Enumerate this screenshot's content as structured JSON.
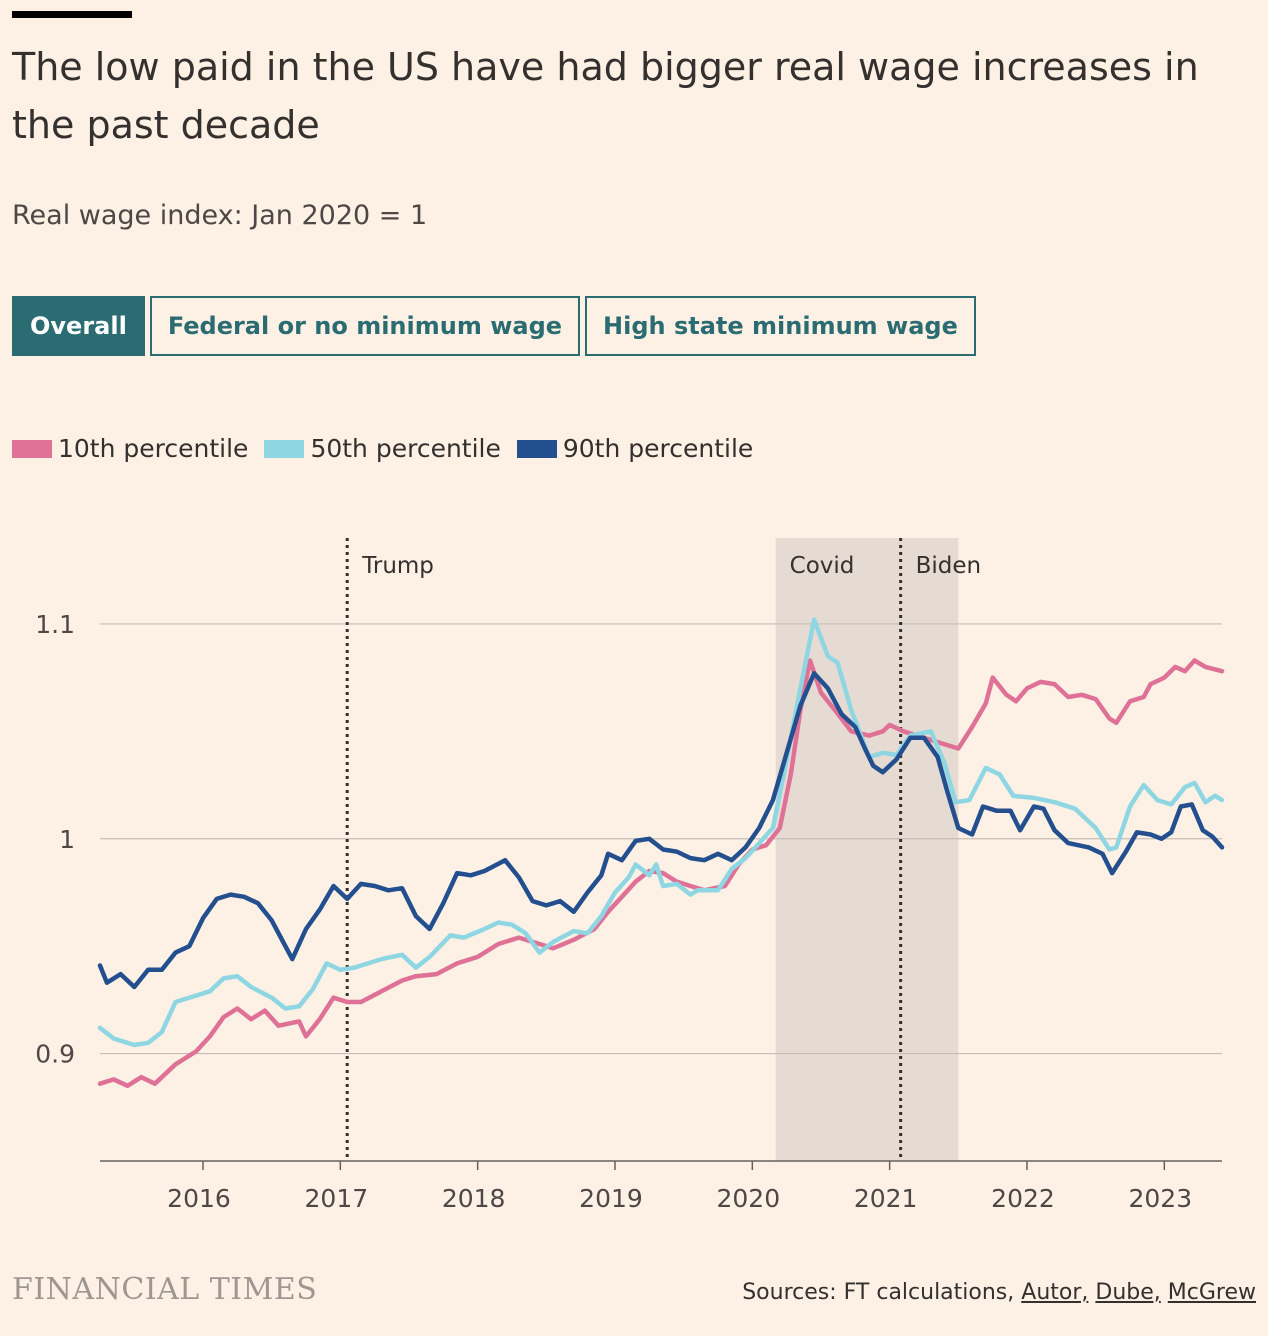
{
  "header": {
    "title": "The low paid in the US have had bigger real wage increases in the past decade",
    "subtitle": "Real wage index: Jan 2020 = 1"
  },
  "tabs": [
    {
      "label": "Overall",
      "active": true
    },
    {
      "label": "Federal or no minimum wage",
      "active": false
    },
    {
      "label": "High state minimum wage",
      "active": false
    }
  ],
  "legend": [
    {
      "label": "10th percentile",
      "color": "#e07196"
    },
    {
      "label": "50th percentile",
      "color": "#8fd6e3"
    },
    {
      "label": "90th percentile",
      "color": "#244f8f"
    }
  ],
  "footer": {
    "logo": "FINANCIAL TIMES",
    "sources_prefix": "Sources: FT calculations, ",
    "source_links": [
      "Autor,",
      "Dube,",
      "McGrew"
    ]
  },
  "chart_data": {
    "type": "line",
    "x_unit": "year",
    "xlim": [
      2015.25,
      2023.42
    ],
    "ylim": [
      0.85,
      1.14
    ],
    "y_ticks": [
      0.9,
      1.0,
      1.1
    ],
    "y_tick_labels": [
      "0.9",
      "1",
      "1.1"
    ],
    "x_ticks": [
      2016,
      2017,
      2018,
      2019,
      2020,
      2021,
      2022,
      2023
    ],
    "x_tick_labels": [
      "2016",
      "2017",
      "2018",
      "2019",
      "2020",
      "2021",
      "2022",
      "2023"
    ],
    "grid": true,
    "shaded_regions": [
      {
        "label": "Covid",
        "x0": 2020.17,
        "x1": 2021.5,
        "color": "#e6dbd2"
      }
    ],
    "vlines": [
      {
        "label": "Trump",
        "x": 2017.05
      },
      {
        "label": "Biden",
        "x": 2021.08
      }
    ],
    "series": [
      {
        "name": "10th percentile",
        "color": "#e07196",
        "points": [
          [
            2015.25,
            0.886
          ],
          [
            2015.35,
            0.888
          ],
          [
            2015.45,
            0.885
          ],
          [
            2015.55,
            0.889
          ],
          [
            2015.65,
            0.886
          ],
          [
            2015.8,
            0.895
          ],
          [
            2015.95,
            0.901
          ],
          [
            2016.05,
            0.908
          ],
          [
            2016.15,
            0.917
          ],
          [
            2016.25,
            0.921
          ],
          [
            2016.35,
            0.916
          ],
          [
            2016.45,
            0.92
          ],
          [
            2016.55,
            0.913
          ],
          [
            2016.7,
            0.915
          ],
          [
            2016.75,
            0.908
          ],
          [
            2016.85,
            0.916
          ],
          [
            2016.95,
            0.926
          ],
          [
            2017.05,
            0.924
          ],
          [
            2017.15,
            0.924
          ],
          [
            2017.3,
            0.929
          ],
          [
            2017.45,
            0.934
          ],
          [
            2017.55,
            0.936
          ],
          [
            2017.7,
            0.937
          ],
          [
            2017.85,
            0.942
          ],
          [
            2018.0,
            0.945
          ],
          [
            2018.15,
            0.951
          ],
          [
            2018.3,
            0.954
          ],
          [
            2018.45,
            0.951
          ],
          [
            2018.55,
            0.949
          ],
          [
            2018.7,
            0.953
          ],
          [
            2018.85,
            0.958
          ],
          [
            2018.95,
            0.966
          ],
          [
            2019.05,
            0.973
          ],
          [
            2019.15,
            0.98
          ],
          [
            2019.25,
            0.985
          ],
          [
            2019.35,
            0.984
          ],
          [
            2019.45,
            0.98
          ],
          [
            2019.55,
            0.978
          ],
          [
            2019.65,
            0.976
          ],
          [
            2019.8,
            0.978
          ],
          [
            2019.9,
            0.988
          ],
          [
            2020.0,
            0.995
          ],
          [
            2020.1,
            0.997
          ],
          [
            2020.2,
            1.005
          ],
          [
            2020.28,
            1.03
          ],
          [
            2020.35,
            1.06
          ],
          [
            2020.42,
            1.083
          ],
          [
            2020.5,
            1.068
          ],
          [
            2020.6,
            1.06
          ],
          [
            2020.72,
            1.05
          ],
          [
            2020.85,
            1.048
          ],
          [
            2020.95,
            1.05
          ],
          [
            2021.0,
            1.053
          ],
          [
            2021.1,
            1.05
          ],
          [
            2021.2,
            1.048
          ],
          [
            2021.35,
            1.045
          ],
          [
            2021.5,
            1.042
          ],
          [
            2021.6,
            1.052
          ],
          [
            2021.7,
            1.063
          ],
          [
            2021.75,
            1.075
          ],
          [
            2021.85,
            1.067
          ],
          [
            2021.92,
            1.064
          ],
          [
            2022.0,
            1.07
          ],
          [
            2022.1,
            1.073
          ],
          [
            2022.2,
            1.072
          ],
          [
            2022.3,
            1.066
          ],
          [
            2022.4,
            1.067
          ],
          [
            2022.5,
            1.065
          ],
          [
            2022.6,
            1.056
          ],
          [
            2022.65,
            1.054
          ],
          [
            2022.75,
            1.064
          ],
          [
            2022.85,
            1.066
          ],
          [
            2022.9,
            1.072
          ],
          [
            2023.0,
            1.075
          ],
          [
            2023.08,
            1.08
          ],
          [
            2023.15,
            1.078
          ],
          [
            2023.22,
            1.083
          ],
          [
            2023.3,
            1.08
          ],
          [
            2023.42,
            1.078
          ]
        ]
      },
      {
        "name": "50th percentile",
        "color": "#8fd6e3",
        "points": [
          [
            2015.25,
            0.912
          ],
          [
            2015.35,
            0.907
          ],
          [
            2015.5,
            0.904
          ],
          [
            2015.6,
            0.905
          ],
          [
            2015.7,
            0.91
          ],
          [
            2015.8,
            0.924
          ],
          [
            2015.95,
            0.927
          ],
          [
            2016.05,
            0.929
          ],
          [
            2016.15,
            0.935
          ],
          [
            2016.25,
            0.936
          ],
          [
            2016.35,
            0.931
          ],
          [
            2016.5,
            0.926
          ],
          [
            2016.6,
            0.921
          ],
          [
            2016.7,
            0.922
          ],
          [
            2016.8,
            0.93
          ],
          [
            2016.9,
            0.942
          ],
          [
            2017.0,
            0.939
          ],
          [
            2017.1,
            0.94
          ],
          [
            2017.2,
            0.942
          ],
          [
            2017.3,
            0.944
          ],
          [
            2017.45,
            0.946
          ],
          [
            2017.55,
            0.94
          ],
          [
            2017.65,
            0.945
          ],
          [
            2017.8,
            0.955
          ],
          [
            2017.9,
            0.954
          ],
          [
            2018.05,
            0.958
          ],
          [
            2018.15,
            0.961
          ],
          [
            2018.25,
            0.96
          ],
          [
            2018.35,
            0.956
          ],
          [
            2018.45,
            0.947
          ],
          [
            2018.55,
            0.952
          ],
          [
            2018.7,
            0.957
          ],
          [
            2018.8,
            0.956
          ],
          [
            2018.9,
            0.964
          ],
          [
            2019.0,
            0.975
          ],
          [
            2019.1,
            0.982
          ],
          [
            2019.15,
            0.988
          ],
          [
            2019.25,
            0.983
          ],
          [
            2019.3,
            0.988
          ],
          [
            2019.35,
            0.978
          ],
          [
            2019.45,
            0.979
          ],
          [
            2019.55,
            0.974
          ],
          [
            2019.6,
            0.976
          ],
          [
            2019.7,
            0.976
          ],
          [
            2019.75,
            0.976
          ],
          [
            2019.85,
            0.986
          ],
          [
            2019.95,
            0.991
          ],
          [
            2020.05,
            0.998
          ],
          [
            2020.15,
            1.005
          ],
          [
            2020.25,
            1.037
          ],
          [
            2020.35,
            1.07
          ],
          [
            2020.45,
            1.102
          ],
          [
            2020.55,
            1.085
          ],
          [
            2020.62,
            1.082
          ],
          [
            2020.72,
            1.06
          ],
          [
            2020.85,
            1.038
          ],
          [
            2020.95,
            1.04
          ],
          [
            2021.05,
            1.039
          ],
          [
            2021.15,
            1.048
          ],
          [
            2021.3,
            1.05
          ],
          [
            2021.4,
            1.035
          ],
          [
            2021.48,
            1.017
          ],
          [
            2021.58,
            1.018
          ],
          [
            2021.7,
            1.033
          ],
          [
            2021.8,
            1.03
          ],
          [
            2021.9,
            1.02
          ],
          [
            2022.05,
            1.019
          ],
          [
            2022.2,
            1.017
          ],
          [
            2022.35,
            1.014
          ],
          [
            2022.5,
            1.005
          ],
          [
            2022.6,
            0.995
          ],
          [
            2022.65,
            0.996
          ],
          [
            2022.75,
            1.015
          ],
          [
            2022.85,
            1.025
          ],
          [
            2022.95,
            1.018
          ],
          [
            2023.05,
            1.016
          ],
          [
            2023.15,
            1.024
          ],
          [
            2023.22,
            1.026
          ],
          [
            2023.3,
            1.017
          ],
          [
            2023.37,
            1.02
          ],
          [
            2023.42,
            1.018
          ]
        ]
      },
      {
        "name": "90th percentile",
        "color": "#244f8f",
        "points": [
          [
            2015.25,
            0.941
          ],
          [
            2015.3,
            0.933
          ],
          [
            2015.4,
            0.937
          ],
          [
            2015.5,
            0.931
          ],
          [
            2015.6,
            0.939
          ],
          [
            2015.7,
            0.939
          ],
          [
            2015.8,
            0.947
          ],
          [
            2015.9,
            0.95
          ],
          [
            2016.0,
            0.963
          ],
          [
            2016.1,
            0.972
          ],
          [
            2016.2,
            0.974
          ],
          [
            2016.3,
            0.973
          ],
          [
            2016.4,
            0.97
          ],
          [
            2016.5,
            0.962
          ],
          [
            2016.6,
            0.95
          ],
          [
            2016.65,
            0.944
          ],
          [
            2016.75,
            0.958
          ],
          [
            2016.85,
            0.967
          ],
          [
            2016.95,
            0.978
          ],
          [
            2017.05,
            0.972
          ],
          [
            2017.15,
            0.979
          ],
          [
            2017.25,
            0.978
          ],
          [
            2017.35,
            0.976
          ],
          [
            2017.45,
            0.977
          ],
          [
            2017.55,
            0.964
          ],
          [
            2017.65,
            0.958
          ],
          [
            2017.75,
            0.97
          ],
          [
            2017.85,
            0.984
          ],
          [
            2017.95,
            0.983
          ],
          [
            2018.05,
            0.985
          ],
          [
            2018.2,
            0.99
          ],
          [
            2018.3,
            0.982
          ],
          [
            2018.4,
            0.971
          ],
          [
            2018.5,
            0.969
          ],
          [
            2018.6,
            0.971
          ],
          [
            2018.7,
            0.966
          ],
          [
            2018.8,
            0.975
          ],
          [
            2018.9,
            0.983
          ],
          [
            2018.95,
            0.993
          ],
          [
            2019.05,
            0.99
          ],
          [
            2019.15,
            0.999
          ],
          [
            2019.25,
            1.0
          ],
          [
            2019.35,
            0.995
          ],
          [
            2019.45,
            0.994
          ],
          [
            2019.55,
            0.991
          ],
          [
            2019.65,
            0.99
          ],
          [
            2019.75,
            0.993
          ],
          [
            2019.85,
            0.99
          ],
          [
            2019.95,
            0.996
          ],
          [
            2020.05,
            1.005
          ],
          [
            2020.15,
            1.018
          ],
          [
            2020.25,
            1.04
          ],
          [
            2020.35,
            1.062
          ],
          [
            2020.45,
            1.077
          ],
          [
            2020.55,
            1.07
          ],
          [
            2020.65,
            1.058
          ],
          [
            2020.75,
            1.052
          ],
          [
            2020.82,
            1.042
          ],
          [
            2020.88,
            1.034
          ],
          [
            2020.95,
            1.031
          ],
          [
            2021.05,
            1.037
          ],
          [
            2021.15,
            1.047
          ],
          [
            2021.25,
            1.047
          ],
          [
            2021.35,
            1.038
          ],
          [
            2021.42,
            1.022
          ],
          [
            2021.5,
            1.005
          ],
          [
            2021.6,
            1.002
          ],
          [
            2021.68,
            1.015
          ],
          [
            2021.78,
            1.013
          ],
          [
            2021.88,
            1.013
          ],
          [
            2021.95,
            1.004
          ],
          [
            2022.05,
            1.015
          ],
          [
            2022.12,
            1.014
          ],
          [
            2022.2,
            1.004
          ],
          [
            2022.3,
            0.998
          ],
          [
            2022.45,
            0.996
          ],
          [
            2022.55,
            0.993
          ],
          [
            2022.62,
            0.984
          ],
          [
            2022.72,
            0.994
          ],
          [
            2022.8,
            1.003
          ],
          [
            2022.9,
            1.002
          ],
          [
            2022.98,
            1.0
          ],
          [
            2023.05,
            1.003
          ],
          [
            2023.12,
            1.015
          ],
          [
            2023.2,
            1.016
          ],
          [
            2023.28,
            1.004
          ],
          [
            2023.35,
            1.001
          ],
          [
            2023.42,
            0.996
          ]
        ]
      }
    ]
  }
}
